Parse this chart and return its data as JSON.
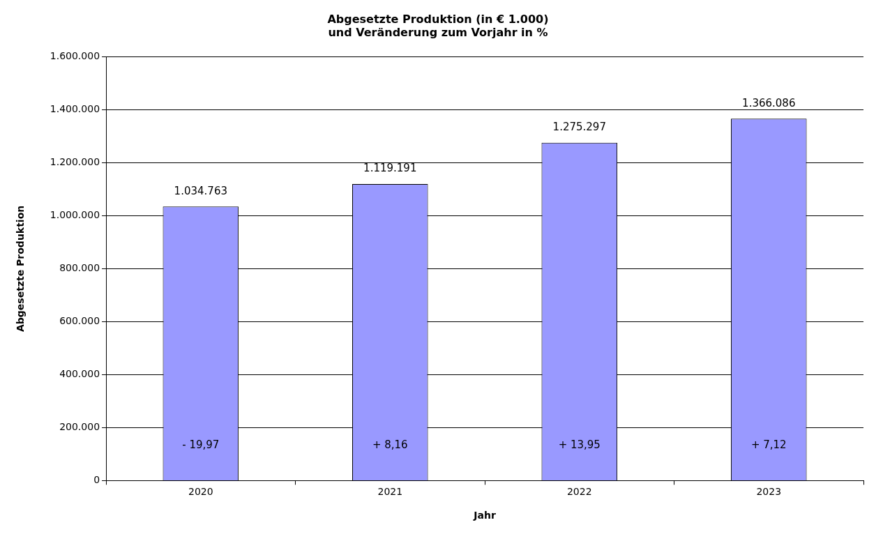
{
  "chart_data": {
    "type": "bar",
    "title": "Abgesetzte Produktion (in € 1.000)\nund Veränderung zum Vorjahr in %",
    "xlabel": "Jahr",
    "ylabel": "Abgesetzte Produktion",
    "categories": [
      "2020",
      "2021",
      "2022",
      "2023"
    ],
    "values": [
      1034763,
      1119191,
      1275297,
      1366086
    ],
    "value_labels": [
      "1.034.763",
      "1.119.191",
      "1.275.297",
      "1.366.086"
    ],
    "color": "#9999ff",
    "ylim": [
      0,
      1600000
    ],
    "yticks": [
      {
        "value": 0,
        "label": "0"
      },
      {
        "value": 200000,
        "label": "200.000"
      },
      {
        "value": 400000,
        "label": "400.000"
      },
      {
        "value": 600000,
        "label": "600.000"
      },
      {
        "value": 800000,
        "label": "800.000"
      },
      {
        "value": 1000000,
        "label": "1.000.000"
      },
      {
        "value": 1200000,
        "label": "1.200.000"
      },
      {
        "value": 1400000,
        "label": "1.400.000"
      },
      {
        "value": 1600000,
        "label": "1.600.000"
      }
    ],
    "grid": "y",
    "legend": false,
    "annotations": [
      "- 19,97",
      "+ 8,16",
      "+ 13,95",
      "+ 7,12"
    ]
  }
}
